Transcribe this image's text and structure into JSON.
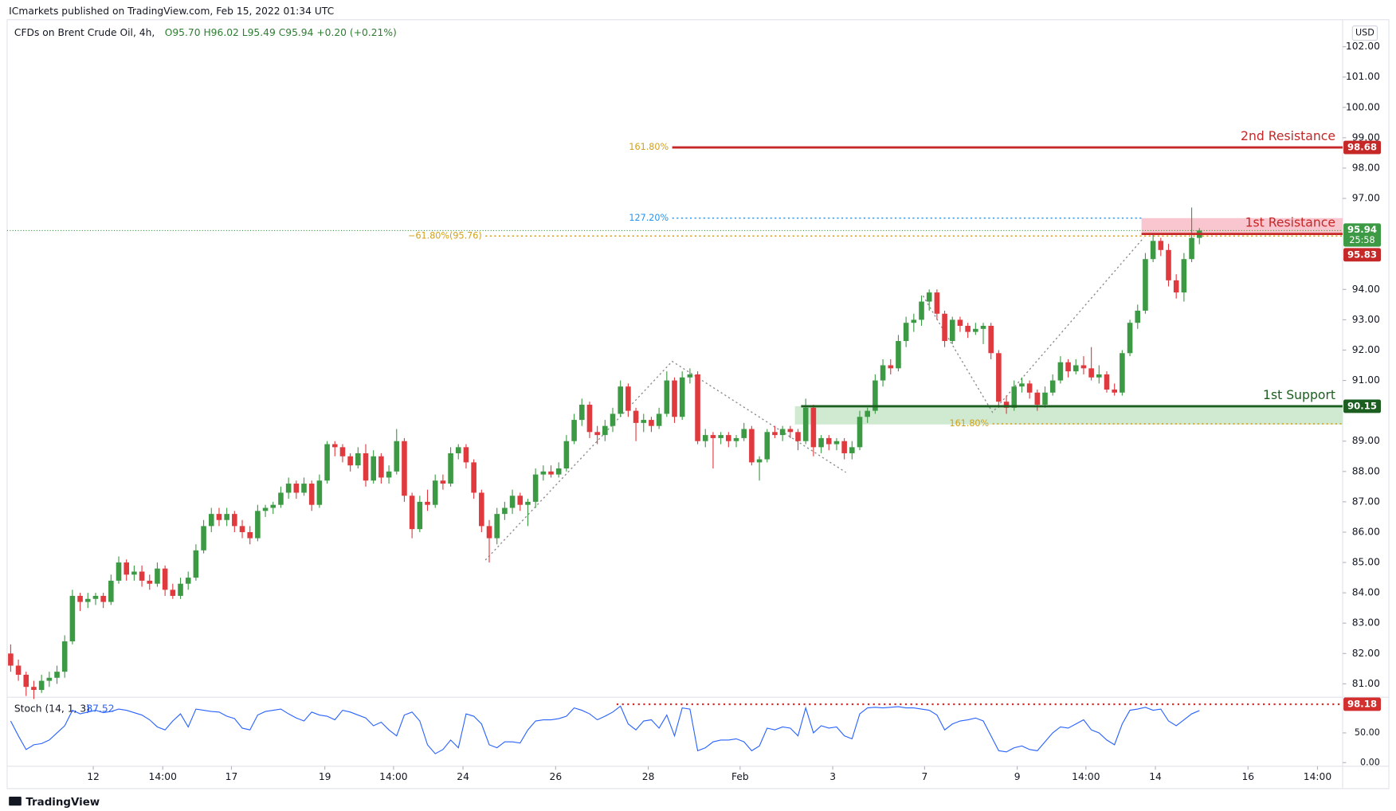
{
  "chart_data": {
    "type": "candlestick",
    "published": "ICmarkets published on TradingView.com, Feb 15, 2022 01:34 UTC",
    "title": "CFDs on Brent Crude Oil, 4h,",
    "ohlc_text": "O95.70 H96.02 L95.49 C95.94 +0.20 (+0.21%)",
    "currency": "USD",
    "logo": "TradingView",
    "countdown": "25:58",
    "up_color": "#3d9a44",
    "down_color": "#e0393e",
    "xlim": [
      -0.46,
      172.55
    ],
    "xticks": [
      {
        "value": 10.7,
        "label": "12"
      },
      {
        "value": 19.7,
        "label": "14:00"
      },
      {
        "value": 28.6,
        "label": "17"
      },
      {
        "value": 40.7,
        "label": "19"
      },
      {
        "value": 49.6,
        "label": "14:00"
      },
      {
        "value": 58.6,
        "label": "24"
      },
      {
        "value": 70.6,
        "label": "26"
      },
      {
        "value": 82.6,
        "label": "28"
      },
      {
        "value": 94.5,
        "label": "Feb"
      },
      {
        "value": 106.5,
        "label": "3"
      },
      {
        "value": 118.4,
        "label": "7"
      },
      {
        "value": 130.4,
        "label": "9"
      },
      {
        "value": 139.3,
        "label": "14:00"
      },
      {
        "value": 148.3,
        "label": "14"
      },
      {
        "value": 160.3,
        "label": "16"
      },
      {
        "value": 169.3,
        "label": "14:00"
      }
    ],
    "ylim": [
      80.56,
      102.89
    ],
    "yticks": [
      {
        "value": 81,
        "label": "81.00"
      },
      {
        "value": 82,
        "label": "82.00"
      },
      {
        "value": 83,
        "label": "83.00"
      },
      {
        "value": 84,
        "label": "84.00"
      },
      {
        "value": 85,
        "label": "85.00"
      },
      {
        "value": 86,
        "label": "86.00"
      },
      {
        "value": 87,
        "label": "87.00"
      },
      {
        "value": 88,
        "label": "88.00"
      },
      {
        "value": 89,
        "label": "89.00"
      },
      {
        "value": 91,
        "label": "91.00"
      },
      {
        "value": 92,
        "label": "92.00"
      },
      {
        "value": 93,
        "label": "93.00"
      },
      {
        "value": 94,
        "label": "94.00"
      },
      {
        "value": 97,
        "label": "97.00"
      },
      {
        "value": 98,
        "label": "98.00"
      },
      {
        "value": 99,
        "label": "99.00"
      },
      {
        "value": 100,
        "label": "100.00"
      },
      {
        "value": 101,
        "label": "101.00"
      },
      {
        "value": 102,
        "label": "102.00"
      }
    ],
    "candles": [
      [
        82.0,
        82.3,
        81.4,
        81.6
      ],
      [
        81.6,
        81.8,
        81.1,
        81.3
      ],
      [
        81.3,
        81.4,
        80.6,
        80.9
      ],
      [
        80.9,
        81.1,
        80.5,
        80.8
      ],
      [
        80.8,
        81.3,
        80.7,
        81.1
      ],
      [
        81.1,
        81.4,
        80.9,
        81.2
      ],
      [
        81.2,
        81.6,
        81.0,
        81.4
      ],
      [
        81.4,
        82.6,
        81.2,
        82.4
      ],
      [
        82.4,
        84.1,
        82.3,
        83.9
      ],
      [
        83.9,
        84.0,
        83.4,
        83.7
      ],
      [
        83.7,
        84.0,
        83.5,
        83.8
      ],
      [
        83.8,
        84.0,
        83.6,
        83.9
      ],
      [
        83.9,
        84.0,
        83.5,
        83.7
      ],
      [
        83.7,
        84.6,
        83.6,
        84.4
      ],
      [
        84.4,
        85.2,
        84.3,
        85.0
      ],
      [
        85.0,
        85.1,
        84.4,
        84.6
      ],
      [
        84.6,
        84.9,
        84.4,
        84.7
      ],
      [
        84.7,
        84.9,
        84.2,
        84.4
      ],
      [
        84.4,
        84.6,
        84.1,
        84.3
      ],
      [
        84.3,
        85.0,
        84.2,
        84.8
      ],
      [
        84.8,
        84.9,
        83.9,
        84.1
      ],
      [
        84.1,
        84.3,
        83.8,
        83.9
      ],
      [
        83.9,
        84.5,
        83.8,
        84.3
      ],
      [
        84.3,
        84.7,
        84.1,
        84.5
      ],
      [
        84.5,
        85.6,
        84.4,
        85.4
      ],
      [
        85.4,
        86.4,
        85.3,
        86.2
      ],
      [
        86.2,
        86.8,
        86.0,
        86.6
      ],
      [
        86.6,
        86.8,
        86.2,
        86.4
      ],
      [
        86.4,
        86.8,
        86.2,
        86.6
      ],
      [
        86.6,
        86.7,
        86.0,
        86.2
      ],
      [
        86.2,
        86.4,
        85.8,
        86.0
      ],
      [
        86.0,
        86.2,
        85.6,
        85.8
      ],
      [
        85.8,
        86.9,
        85.7,
        86.7
      ],
      [
        86.7,
        86.9,
        86.5,
        86.8
      ],
      [
        86.8,
        87.0,
        86.6,
        86.9
      ],
      [
        86.9,
        87.5,
        86.8,
        87.3
      ],
      [
        87.3,
        87.8,
        87.1,
        87.6
      ],
      [
        87.6,
        87.7,
        87.1,
        87.3
      ],
      [
        87.3,
        87.8,
        87.2,
        87.6
      ],
      [
        87.6,
        87.7,
        86.7,
        86.9
      ],
      [
        86.9,
        87.9,
        86.8,
        87.7
      ],
      [
        87.7,
        89.0,
        87.6,
        88.9
      ],
      [
        88.9,
        89.0,
        88.5,
        88.8
      ],
      [
        88.8,
        88.9,
        88.3,
        88.5
      ],
      [
        88.5,
        88.6,
        88.0,
        88.2
      ],
      [
        88.2,
        88.8,
        88.1,
        88.6
      ],
      [
        88.6,
        88.9,
        87.5,
        87.7
      ],
      [
        87.7,
        88.7,
        87.6,
        88.5
      ],
      [
        88.5,
        88.6,
        87.6,
        87.8
      ],
      [
        87.8,
        88.2,
        87.6,
        88.0
      ],
      [
        88.0,
        89.4,
        87.9,
        89.0
      ],
      [
        89.0,
        89.1,
        87.0,
        87.2
      ],
      [
        87.2,
        87.3,
        85.8,
        86.1
      ],
      [
        86.1,
        87.2,
        86.0,
        87.0
      ],
      [
        87.0,
        87.4,
        86.7,
        86.9
      ],
      [
        86.9,
        87.9,
        86.8,
        87.7
      ],
      [
        87.7,
        87.9,
        87.4,
        87.6
      ],
      [
        87.6,
        88.8,
        87.5,
        88.6
      ],
      [
        88.6,
        88.9,
        88.4,
        88.8
      ],
      [
        88.8,
        88.9,
        88.1,
        88.3
      ],
      [
        88.3,
        88.4,
        87.1,
        87.3
      ],
      [
        87.3,
        87.4,
        86.0,
        86.2
      ],
      [
        86.2,
        86.4,
        85.0,
        85.8
      ],
      [
        85.8,
        86.8,
        85.6,
        86.6
      ],
      [
        86.6,
        87.0,
        86.4,
        86.8
      ],
      [
        86.8,
        87.4,
        86.6,
        87.2
      ],
      [
        87.2,
        87.3,
        86.7,
        86.9
      ],
      [
        86.9,
        87.1,
        86.2,
        87.0
      ],
      [
        87.0,
        88.1,
        86.8,
        87.9
      ],
      [
        87.9,
        88.2,
        87.7,
        88.0
      ],
      [
        88.0,
        88.2,
        87.8,
        87.9
      ],
      [
        87.9,
        88.3,
        87.8,
        88.1
      ],
      [
        88.1,
        89.2,
        88.0,
        89.0
      ],
      [
        89.0,
        89.9,
        88.9,
        89.7
      ],
      [
        89.7,
        90.4,
        89.5,
        90.2
      ],
      [
        90.2,
        90.3,
        89.1,
        89.3
      ],
      [
        89.3,
        89.5,
        88.9,
        89.2
      ],
      [
        89.2,
        89.7,
        89.0,
        89.5
      ],
      [
        89.5,
        90.1,
        89.3,
        89.9
      ],
      [
        89.9,
        91.0,
        89.8,
        90.8
      ],
      [
        90.8,
        90.9,
        89.8,
        90.0
      ],
      [
        90.0,
        90.1,
        89.0,
        89.6
      ],
      [
        89.6,
        89.9,
        89.3,
        89.7
      ],
      [
        89.7,
        89.8,
        89.3,
        89.5
      ],
      [
        89.5,
        90.1,
        89.4,
        89.9
      ],
      [
        89.9,
        91.3,
        89.8,
        91.0
      ],
      [
        91.0,
        91.1,
        89.6,
        89.8
      ],
      [
        89.8,
        91.3,
        89.7,
        91.1
      ],
      [
        91.1,
        91.4,
        90.9,
        91.2
      ],
      [
        91.2,
        91.3,
        88.9,
        89.0
      ],
      [
        89.0,
        89.4,
        88.8,
        89.2
      ],
      [
        89.2,
        89.3,
        88.1,
        89.1
      ],
      [
        89.1,
        89.3,
        88.9,
        89.2
      ],
      [
        89.2,
        89.3,
        88.8,
        89.0
      ],
      [
        89.0,
        89.2,
        88.8,
        89.1
      ],
      [
        89.1,
        89.6,
        89.0,
        89.4
      ],
      [
        89.4,
        89.5,
        88.2,
        88.3
      ],
      [
        88.3,
        88.5,
        87.7,
        88.4
      ],
      [
        88.4,
        89.4,
        88.3,
        89.3
      ],
      [
        89.3,
        89.5,
        89.1,
        89.2
      ],
      [
        89.2,
        89.5,
        89.0,
        89.4
      ],
      [
        89.4,
        89.5,
        89.1,
        89.3
      ],
      [
        89.3,
        89.4,
        88.7,
        89.0
      ],
      [
        89.0,
        90.4,
        88.9,
        90.1
      ],
      [
        90.1,
        90.2,
        88.5,
        88.8
      ],
      [
        88.8,
        89.2,
        88.6,
        89.1
      ],
      [
        89.1,
        89.2,
        88.7,
        88.9
      ],
      [
        88.9,
        89.1,
        88.7,
        89.0
      ],
      [
        89.0,
        89.1,
        88.4,
        88.6
      ],
      [
        88.6,
        89.0,
        88.4,
        88.8
      ],
      [
        88.8,
        90.0,
        88.7,
        89.8
      ],
      [
        89.8,
        90.1,
        89.6,
        90.0
      ],
      [
        90.0,
        91.2,
        89.9,
        91.0
      ],
      [
        91.0,
        91.7,
        90.8,
        91.5
      ],
      [
        91.5,
        91.7,
        91.2,
        91.4
      ],
      [
        91.4,
        92.5,
        91.3,
        92.3
      ],
      [
        92.3,
        93.1,
        92.1,
        92.9
      ],
      [
        92.9,
        93.2,
        92.6,
        93.0
      ],
      [
        93.0,
        93.8,
        92.8,
        93.6
      ],
      [
        93.6,
        94.0,
        93.3,
        93.9
      ],
      [
        93.9,
        94.0,
        93.0,
        93.2
      ],
      [
        93.2,
        93.3,
        92.1,
        92.3
      ],
      [
        92.3,
        93.1,
        92.2,
        93.0
      ],
      [
        93.0,
        93.1,
        92.6,
        92.8
      ],
      [
        92.8,
        92.9,
        92.4,
        92.6
      ],
      [
        92.6,
        92.9,
        92.5,
        92.7
      ],
      [
        92.7,
        92.9,
        92.2,
        92.8
      ],
      [
        92.8,
        92.9,
        91.7,
        91.9
      ],
      [
        91.9,
        92.0,
        90.1,
        90.3
      ],
      [
        90.3,
        90.5,
        89.9,
        90.1
      ],
      [
        90.1,
        91.0,
        90.0,
        90.8
      ],
      [
        90.8,
        91.1,
        90.6,
        90.9
      ],
      [
        90.9,
        91.0,
        90.4,
        90.6
      ],
      [
        90.6,
        90.7,
        90.0,
        90.2
      ],
      [
        90.2,
        90.8,
        90.1,
        90.6
      ],
      [
        90.6,
        91.2,
        90.5,
        91.0
      ],
      [
        91.0,
        91.8,
        90.9,
        91.6
      ],
      [
        91.6,
        91.7,
        91.1,
        91.3
      ],
      [
        91.3,
        91.7,
        91.2,
        91.5
      ],
      [
        91.5,
        91.8,
        91.2,
        91.4
      ],
      [
        91.4,
        92.1,
        91.0,
        91.1
      ],
      [
        91.1,
        91.5,
        90.9,
        91.2
      ],
      [
        91.2,
        91.3,
        90.6,
        90.7
      ],
      [
        90.7,
        90.9,
        90.5,
        90.6
      ],
      [
        90.6,
        92.0,
        90.5,
        91.9
      ],
      [
        91.9,
        93.0,
        91.8,
        92.9
      ],
      [
        92.9,
        93.5,
        92.7,
        93.3
      ],
      [
        93.3,
        95.2,
        93.2,
        95.0
      ],
      [
        95.0,
        95.8,
        94.9,
        95.6
      ],
      [
        95.6,
        95.7,
        95.1,
        95.3
      ],
      [
        95.3,
        95.5,
        94.1,
        94.3
      ],
      [
        94.3,
        94.5,
        93.7,
        93.9
      ],
      [
        93.9,
        95.2,
        93.6,
        95.0
      ],
      [
        95.0,
        96.7,
        94.9,
        95.7
      ],
      [
        95.7,
        96.02,
        95.49,
        95.94
      ]
    ],
    "levels": [
      {
        "name": "2nd Resistance",
        "value": 98.68,
        "start": 85.7,
        "color": "#c62828"
      },
      {
        "name": "1st Resistance",
        "value": 95.83,
        "start": 146.5,
        "color": "#c62828"
      },
      {
        "name": "1st Support",
        "value": 90.15,
        "start": 102.4,
        "color": "#1b5e20"
      }
    ],
    "zones": [
      {
        "top": 96.35,
        "bottom": 95.83,
        "start": 146.5,
        "color": "#f8bbc6"
      },
      {
        "top": 90.15,
        "bottom": 89.55,
        "start": 101.6,
        "color": "#c8e6c9"
      }
    ],
    "fib_lines": [
      {
        "label": "161.80%",
        "value": 98.68,
        "start": 85.7,
        "color": "#d4a017"
      },
      {
        "label": "127.20%",
        "value": 96.35,
        "start": 85.7,
        "end": 146.5,
        "color": "#2196f3"
      },
      {
        "label": "−61.80%(95.76)",
        "value": 95.76,
        "start": 61.5,
        "color": "#d4a017"
      },
      {
        "label": "161.80%",
        "value": 89.57,
        "start": 127.2,
        "color": "#d4a017"
      }
    ],
    "zigzags": [
      {
        "x": [
          61.5,
          85.7,
          108.2
        ],
        "y": [
          85.08,
          91.63,
          87.97
        ]
      },
      {
        "x": [
          118.2,
          127.2,
          146.8
        ],
        "y": [
          93.79,
          89.95,
          95.71
        ]
      }
    ],
    "indicator": {
      "name": "Stoch (14, 1, 3)",
      "color": "#2962ff",
      "ylim": [
        -6,
        110
      ],
      "yticks": [
        {
          "value": 0,
          "label": "0.00"
        },
        {
          "value": 50,
          "label": "50.00"
        }
      ],
      "level": 98.18,
      "level_start": 78.5,
      "level_color": "#d32f2f",
      "values": [
        70,
        45,
        22,
        30,
        32,
        38,
        50,
        62,
        88,
        82,
        85,
        88,
        84,
        86,
        90,
        88,
        84,
        80,
        72,
        60,
        55,
        70,
        82,
        60,
        90,
        88,
        86,
        85,
        78,
        74,
        58,
        55,
        80,
        86,
        88,
        90,
        82,
        75,
        70,
        85,
        80,
        78,
        72,
        88,
        85,
        80,
        75,
        62,
        68,
        55,
        45,
        80,
        85,
        70,
        30,
        15,
        22,
        38,
        25,
        82,
        78,
        65,
        30,
        25,
        35,
        35,
        33,
        55,
        70,
        72,
        72,
        74,
        78,
        92,
        88,
        82,
        72,
        78,
        85,
        95,
        65,
        55,
        70,
        72,
        58,
        80,
        45,
        92,
        90,
        20,
        25,
        35,
        38,
        38,
        40,
        35,
        20,
        28,
        58,
        55,
        60,
        58,
        45,
        92,
        50,
        62,
        58,
        60,
        45,
        40,
        82,
        92,
        93,
        92,
        93,
        94,
        92,
        92,
        90,
        88,
        80,
        55,
        65,
        70,
        72,
        75,
        70,
        45,
        20,
        18,
        25,
        28,
        22,
        20,
        35,
        50,
        60,
        58,
        65,
        72,
        55,
        50,
        38,
        30,
        65,
        88,
        90,
        93,
        88,
        90,
        70,
        62,
        72,
        82,
        87.52
      ]
    }
  }
}
